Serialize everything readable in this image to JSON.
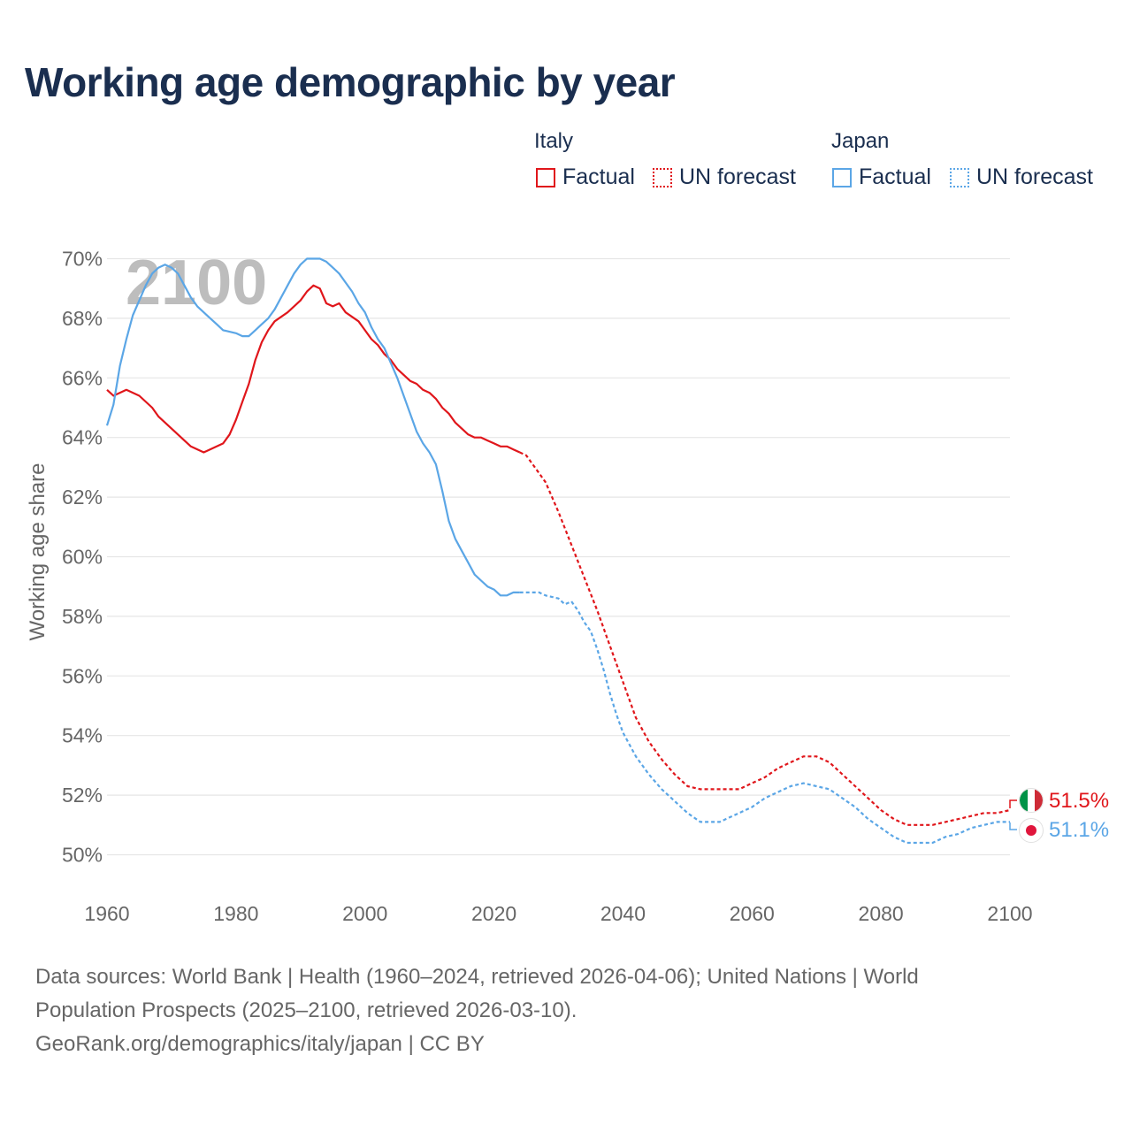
{
  "title": "Working age demographic by year",
  "legend": {
    "italy_label": "Italy",
    "japan_label": "Japan",
    "italy_factual": "Factual",
    "italy_forecast": "UN forecast",
    "japan_factual": "Factual",
    "japan_forecast": "UN forecast"
  },
  "colors": {
    "italy": "#e0161b",
    "japan": "#5ba6e6"
  },
  "year_watermark": "2100",
  "source": {
    "line1": "Data sources: World Bank | Health (1960–2024, retrieved 2026-04-06); United Nations | World",
    "line2": "Population Prospects (2025–2100, retrieved 2026-03-10).",
    "line3": "GeoRank.org/demographics/italy/japan | CC BY"
  },
  "end_labels": {
    "italy": "51.5%",
    "japan": "51.1%"
  },
  "chart_data": {
    "type": "line",
    "title": "Working age demographic by year",
    "xlabel": "",
    "ylabel": "Working age share",
    "xlim": [
      1960,
      2100
    ],
    "ylim": [
      49,
      71
    ],
    "x_ticks": [
      1960,
      1980,
      2000,
      2020,
      2040,
      2060,
      2080,
      2100
    ],
    "x_tick_labels": [
      "1960",
      "1980",
      "2000",
      "2020",
      "2040",
      "2060",
      "2080",
      "2100"
    ],
    "y_ticks": [
      50,
      52,
      54,
      56,
      58,
      60,
      62,
      64,
      66,
      68,
      70
    ],
    "y_tick_labels": [
      "50%",
      "52%",
      "54%",
      "56%",
      "58%",
      "60%",
      "62%",
      "64%",
      "66%",
      "68%",
      "70%"
    ],
    "series": [
      {
        "name": "Italy Factual",
        "style": "solid",
        "points": [
          [
            1960,
            65.6
          ],
          [
            1961,
            65.4
          ],
          [
            1963,
            65.6
          ],
          [
            1965,
            65.4
          ],
          [
            1967,
            65.0
          ],
          [
            1968,
            64.7
          ],
          [
            1970,
            64.3
          ],
          [
            1972,
            63.9
          ],
          [
            1973,
            63.7
          ],
          [
            1975,
            63.5
          ],
          [
            1977,
            63.7
          ],
          [
            1978,
            63.8
          ],
          [
            1979,
            64.1
          ],
          [
            1980,
            64.6
          ],
          [
            1981,
            65.2
          ],
          [
            1982,
            65.8
          ],
          [
            1983,
            66.6
          ],
          [
            1984,
            67.2
          ],
          [
            1985,
            67.6
          ],
          [
            1986,
            67.9
          ],
          [
            1988,
            68.2
          ],
          [
            1990,
            68.6
          ],
          [
            1991,
            68.9
          ],
          [
            1992,
            69.1
          ],
          [
            1993,
            69.0
          ],
          [
            1994,
            68.5
          ],
          [
            1995,
            68.4
          ],
          [
            1996,
            68.5
          ],
          [
            1997,
            68.2
          ],
          [
            1999,
            67.9
          ],
          [
            2000,
            67.6
          ],
          [
            2001,
            67.3
          ],
          [
            2002,
            67.1
          ],
          [
            2003,
            66.8
          ],
          [
            2004,
            66.6
          ],
          [
            2005,
            66.3
          ],
          [
            2006,
            66.1
          ],
          [
            2007,
            65.9
          ],
          [
            2008,
            65.8
          ],
          [
            2009,
            65.6
          ],
          [
            2010,
            65.5
          ],
          [
            2011,
            65.3
          ],
          [
            2012,
            65.0
          ],
          [
            2013,
            64.8
          ],
          [
            2014,
            64.5
          ],
          [
            2015,
            64.3
          ],
          [
            2016,
            64.1
          ],
          [
            2017,
            64.0
          ],
          [
            2018,
            64.0
          ],
          [
            2019,
            63.9
          ],
          [
            2020,
            63.8
          ],
          [
            2021,
            63.7
          ],
          [
            2022,
            63.7
          ],
          [
            2023,
            63.6
          ],
          [
            2024,
            63.5
          ]
        ]
      },
      {
        "name": "Italy UN forecast",
        "style": "dotted",
        "points": [
          [
            2024,
            63.5
          ],
          [
            2025,
            63.4
          ],
          [
            2026,
            63.1
          ],
          [
            2027,
            62.8
          ],
          [
            2028,
            62.5
          ],
          [
            2029,
            62.0
          ],
          [
            2030,
            61.5
          ],
          [
            2032,
            60.4
          ],
          [
            2034,
            59.3
          ],
          [
            2036,
            58.2
          ],
          [
            2038,
            57.0
          ],
          [
            2040,
            55.8
          ],
          [
            2042,
            54.6
          ],
          [
            2044,
            53.8
          ],
          [
            2046,
            53.2
          ],
          [
            2048,
            52.7
          ],
          [
            2050,
            52.3
          ],
          [
            2052,
            52.2
          ],
          [
            2055,
            52.2
          ],
          [
            2058,
            52.2
          ],
          [
            2060,
            52.4
          ],
          [
            2062,
            52.6
          ],
          [
            2064,
            52.9
          ],
          [
            2066,
            53.1
          ],
          [
            2068,
            53.3
          ],
          [
            2070,
            53.3
          ],
          [
            2072,
            53.1
          ],
          [
            2074,
            52.7
          ],
          [
            2076,
            52.3
          ],
          [
            2078,
            51.9
          ],
          [
            2080,
            51.5
          ],
          [
            2082,
            51.2
          ],
          [
            2084,
            51.0
          ],
          [
            2086,
            51.0
          ],
          [
            2088,
            51.0
          ],
          [
            2090,
            51.1
          ],
          [
            2092,
            51.2
          ],
          [
            2094,
            51.3
          ],
          [
            2096,
            51.4
          ],
          [
            2098,
            51.4
          ],
          [
            2100,
            51.5
          ]
        ]
      },
      {
        "name": "Japan Factual",
        "style": "solid",
        "points": [
          [
            1960,
            64.4
          ],
          [
            1961,
            65.1
          ],
          [
            1962,
            66.4
          ],
          [
            1963,
            67.3
          ],
          [
            1964,
            68.1
          ],
          [
            1965,
            68.6
          ],
          [
            1966,
            69.1
          ],
          [
            1967,
            69.5
          ],
          [
            1968,
            69.7
          ],
          [
            1969,
            69.8
          ],
          [
            1970,
            69.7
          ],
          [
            1971,
            69.5
          ],
          [
            1972,
            69.1
          ],
          [
            1973,
            68.7
          ],
          [
            1974,
            68.4
          ],
          [
            1975,
            68.2
          ],
          [
            1976,
            68.0
          ],
          [
            1977,
            67.8
          ],
          [
            1978,
            67.6
          ],
          [
            1980,
            67.5
          ],
          [
            1981,
            67.4
          ],
          [
            1982,
            67.4
          ],
          [
            1983,
            67.6
          ],
          [
            1984,
            67.8
          ],
          [
            1985,
            68.0
          ],
          [
            1986,
            68.3
          ],
          [
            1987,
            68.7
          ],
          [
            1988,
            69.1
          ],
          [
            1989,
            69.5
          ],
          [
            1990,
            69.8
          ],
          [
            1991,
            70.0
          ],
          [
            1992,
            70.0
          ],
          [
            1993,
            70.0
          ],
          [
            1994,
            69.9
          ],
          [
            1995,
            69.7
          ],
          [
            1996,
            69.5
          ],
          [
            1997,
            69.2
          ],
          [
            1998,
            68.9
          ],
          [
            1999,
            68.5
          ],
          [
            2000,
            68.2
          ],
          [
            2001,
            67.7
          ],
          [
            2002,
            67.3
          ],
          [
            2003,
            67.0
          ],
          [
            2004,
            66.5
          ],
          [
            2005,
            66.0
          ],
          [
            2006,
            65.4
          ],
          [
            2007,
            64.8
          ],
          [
            2008,
            64.2
          ],
          [
            2009,
            63.8
          ],
          [
            2010,
            63.5
          ],
          [
            2011,
            63.1
          ],
          [
            2012,
            62.2
          ],
          [
            2013,
            61.2
          ],
          [
            2014,
            60.6
          ],
          [
            2015,
            60.2
          ],
          [
            2016,
            59.8
          ],
          [
            2017,
            59.4
          ],
          [
            2018,
            59.2
          ],
          [
            2019,
            59.0
          ],
          [
            2020,
            58.9
          ],
          [
            2021,
            58.7
          ],
          [
            2022,
            58.7
          ],
          [
            2023,
            58.8
          ],
          [
            2024,
            58.8
          ]
        ]
      },
      {
        "name": "Japan UN forecast",
        "style": "dotted",
        "points": [
          [
            2024,
            58.8
          ],
          [
            2026,
            58.8
          ],
          [
            2027,
            58.8
          ],
          [
            2028,
            58.7
          ],
          [
            2030,
            58.6
          ],
          [
            2031,
            58.4
          ],
          [
            2032,
            58.5
          ],
          [
            2033,
            58.2
          ],
          [
            2034,
            57.8
          ],
          [
            2035,
            57.5
          ],
          [
            2036,
            56.9
          ],
          [
            2037,
            56.2
          ],
          [
            2038,
            55.4
          ],
          [
            2039,
            54.7
          ],
          [
            2040,
            54.1
          ],
          [
            2042,
            53.3
          ],
          [
            2044,
            52.7
          ],
          [
            2046,
            52.2
          ],
          [
            2048,
            51.8
          ],
          [
            2050,
            51.4
          ],
          [
            2052,
            51.1
          ],
          [
            2055,
            51.1
          ],
          [
            2057,
            51.3
          ],
          [
            2060,
            51.6
          ],
          [
            2062,
            51.9
          ],
          [
            2064,
            52.1
          ],
          [
            2066,
            52.3
          ],
          [
            2068,
            52.4
          ],
          [
            2070,
            52.3
          ],
          [
            2072,
            52.2
          ],
          [
            2074,
            51.9
          ],
          [
            2076,
            51.6
          ],
          [
            2078,
            51.2
          ],
          [
            2080,
            50.9
          ],
          [
            2082,
            50.6
          ],
          [
            2084,
            50.4
          ],
          [
            2086,
            50.4
          ],
          [
            2088,
            50.4
          ],
          [
            2090,
            50.6
          ],
          [
            2092,
            50.7
          ],
          [
            2094,
            50.9
          ],
          [
            2096,
            51.0
          ],
          [
            2098,
            51.1
          ],
          [
            2100,
            51.1
          ]
        ]
      }
    ]
  }
}
